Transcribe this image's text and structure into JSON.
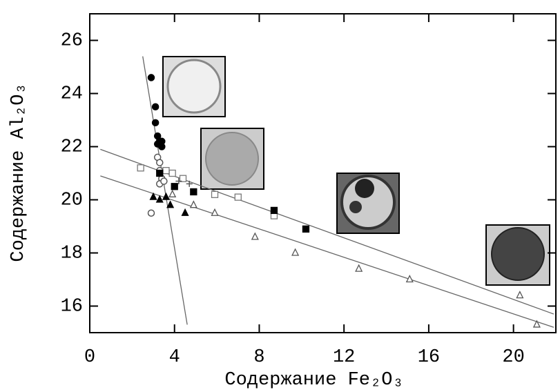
{
  "chart_data": {
    "type": "scatter",
    "xlabel": "Содержание Fe₂O₃",
    "ylabel": "Содержание Al₂O₃",
    "xlim": [
      0,
      22
    ],
    "ylim": [
      15,
      27
    ],
    "xticks": [
      0,
      4,
      8,
      12,
      16,
      20
    ],
    "yticks": [
      16,
      18,
      20,
      22,
      24,
      26
    ],
    "series": [
      {
        "marker": "filled-circle",
        "color": "#000000",
        "x": [
          2.9,
          3.1,
          3.1,
          3.2,
          3.3,
          3.4,
          3.2,
          3.4
        ],
        "y": [
          24.6,
          23.5,
          22.9,
          22.4,
          22.2,
          22.2,
          22.1,
          22.0
        ]
      },
      {
        "marker": "open-circle",
        "color": "#555555",
        "x": [
          3.2,
          3.3,
          3.3,
          3.4,
          3.3,
          3.5,
          2.9
        ],
        "y": [
          21.6,
          21.4,
          21.1,
          20.8,
          20.6,
          20.7,
          19.5
        ]
      },
      {
        "marker": "open-square",
        "color": "#777777",
        "x": [
          2.4,
          3.6,
          3.9,
          4.4,
          5.9,
          7.0,
          8.7
        ],
        "y": [
          21.2,
          21.1,
          21.0,
          20.8,
          20.2,
          20.1,
          19.4
        ]
      },
      {
        "marker": "filled-square",
        "color": "#000000",
        "x": [
          3.3,
          4.0,
          4.9,
          8.7,
          10.2
        ],
        "y": [
          21.0,
          20.5,
          20.3,
          19.6,
          18.9
        ]
      },
      {
        "marker": "filled-triangle",
        "color": "#000000",
        "x": [
          3.0,
          3.3,
          3.6,
          3.8,
          4.5
        ],
        "y": [
          20.1,
          20.0,
          20.1,
          19.8,
          19.5
        ]
      },
      {
        "marker": "open-triangle",
        "color": "#555555",
        "x": [
          3.9,
          4.9,
          5.9,
          7.8,
          9.7,
          12.7,
          15.1,
          20.3,
          21.1
        ],
        "y": [
          20.2,
          19.8,
          19.5,
          18.6,
          18.0,
          17.4,
          17.0,
          16.4,
          15.3
        ]
      },
      {
        "marker": "plus",
        "color": "#555555",
        "x": [
          4.2,
          4.7
        ],
        "y": [
          20.7,
          20.6
        ]
      }
    ],
    "lines": [
      {
        "color": "#666666",
        "x": [
          2.5,
          4.6
        ],
        "y": [
          25.4,
          15.3
        ]
      },
      {
        "color": "#666666",
        "x": [
          0.5,
          21.9
        ],
        "y": [
          21.9,
          15.7
        ]
      },
      {
        "color": "#666666",
        "x": [
          0.5,
          21.9
        ],
        "y": [
          20.9,
          15.2
        ]
      }
    ]
  }
}
